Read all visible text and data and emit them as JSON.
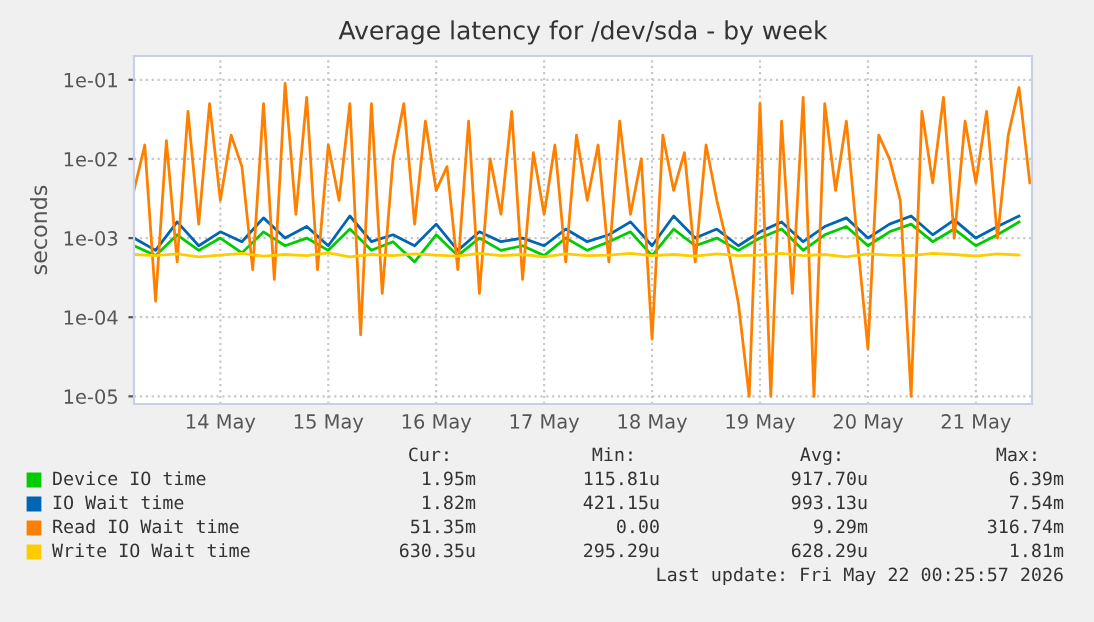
{
  "chart_data": {
    "type": "line",
    "title": "Average latency for /dev/sda - by week",
    "ylabel": "seconds",
    "log": "y",
    "grid": true,
    "legend": "bottom",
    "xlim": [
      "2026-05-13T16:48",
      "2026-05-22T00:29"
    ],
    "ylim": [
      8e-06,
      0.2
    ],
    "xticks": [
      {
        "value": "2026-05-14T12:00",
        "label": "14 May"
      },
      {
        "value": "2026-05-15T12:00",
        "label": "15 May"
      },
      {
        "value": "2026-05-16T12:00",
        "label": "16 May"
      },
      {
        "value": "2026-05-17T12:00",
        "label": "17 May"
      },
      {
        "value": "2026-05-18T12:00",
        "label": "18 May"
      },
      {
        "value": "2026-05-19T12:00",
        "label": "19 May"
      },
      {
        "value": "2026-05-20T12:00",
        "label": "20 May"
      },
      {
        "value": "2026-05-21T12:00",
        "label": "21 May"
      }
    ],
    "yticks": [
      {
        "value": 1e-05,
        "label": "1e-05"
      },
      {
        "value": 0.0001,
        "label": "1e-04"
      },
      {
        "value": 0.001,
        "label": "1e-03"
      },
      {
        "value": 0.01,
        "label": "1e-02"
      },
      {
        "value": 0.1,
        "label": "1e-01"
      }
    ],
    "series": [
      {
        "name": "Device IO time",
        "color": "#00cc00",
        "x": [
          "2026-05-13T16:48",
          "2026-05-13T21:36",
          "2026-05-14T02:24",
          "2026-05-14T07:12",
          "2026-05-14T12:00",
          "2026-05-14T16:48",
          "2026-05-14T21:36",
          "2026-05-15T02:24",
          "2026-05-15T07:12",
          "2026-05-15T12:00",
          "2026-05-15T16:48",
          "2026-05-15T21:36",
          "2026-05-16T02:24",
          "2026-05-16T07:12",
          "2026-05-16T12:00",
          "2026-05-16T16:48",
          "2026-05-16T21:36",
          "2026-05-17T02:24",
          "2026-05-17T07:12",
          "2026-05-17T12:00",
          "2026-05-17T16:48",
          "2026-05-17T21:36",
          "2026-05-18T02:24",
          "2026-05-18T07:12",
          "2026-05-18T12:00",
          "2026-05-18T16:48",
          "2026-05-18T21:36",
          "2026-05-19T02:24",
          "2026-05-19T07:12",
          "2026-05-19T12:00",
          "2026-05-19T16:48",
          "2026-05-19T21:36",
          "2026-05-20T02:24",
          "2026-05-20T07:12",
          "2026-05-20T12:00",
          "2026-05-20T16:48",
          "2026-05-20T21:36",
          "2026-05-21T02:24",
          "2026-05-21T07:12",
          "2026-05-21T12:00",
          "2026-05-21T16:48",
          "2026-05-21T21:36"
        ],
        "values": [
          0.0008,
          0.0006,
          0.0011,
          0.0007,
          0.001,
          0.00065,
          0.0012,
          0.0008,
          0.001,
          0.0007,
          0.0013,
          0.0007,
          0.0009,
          0.0005,
          0.0011,
          0.0006,
          0.001,
          0.0007,
          0.0008,
          0.0006,
          0.001,
          0.0007,
          0.0009,
          0.0012,
          0.0006,
          0.0013,
          0.0008,
          0.001,
          0.0007,
          0.001,
          0.0013,
          0.0007,
          0.0011,
          0.0014,
          0.0008,
          0.0012,
          0.0015,
          0.0009,
          0.0013,
          0.0008,
          0.0011,
          0.0016
        ]
      },
      {
        "name": "IO Wait time",
        "color": "#0066b3",
        "x": [
          "2026-05-13T16:48",
          "2026-05-13T21:36",
          "2026-05-14T02:24",
          "2026-05-14T07:12",
          "2026-05-14T12:00",
          "2026-05-14T16:48",
          "2026-05-14T21:36",
          "2026-05-15T02:24",
          "2026-05-15T07:12",
          "2026-05-15T12:00",
          "2026-05-15T16:48",
          "2026-05-15T21:36",
          "2026-05-16T02:24",
          "2026-05-16T07:12",
          "2026-05-16T12:00",
          "2026-05-16T16:48",
          "2026-05-16T21:36",
          "2026-05-17T02:24",
          "2026-05-17T07:12",
          "2026-05-17T12:00",
          "2026-05-17T16:48",
          "2026-05-17T21:36",
          "2026-05-18T02:24",
          "2026-05-18T07:12",
          "2026-05-18T12:00",
          "2026-05-18T16:48",
          "2026-05-18T21:36",
          "2026-05-19T02:24",
          "2026-05-19T07:12",
          "2026-05-19T12:00",
          "2026-05-19T16:48",
          "2026-05-19T21:36",
          "2026-05-20T02:24",
          "2026-05-20T07:12",
          "2026-05-20T12:00",
          "2026-05-20T16:48",
          "2026-05-20T21:36",
          "2026-05-21T02:24",
          "2026-05-21T07:12",
          "2026-05-21T12:00",
          "2026-05-21T16:48",
          "2026-05-21T21:36"
        ],
        "values": [
          0.001,
          0.0007,
          0.0016,
          0.0008,
          0.0012,
          0.0009,
          0.0018,
          0.001,
          0.0014,
          0.0008,
          0.0019,
          0.0009,
          0.0011,
          0.0008,
          0.0015,
          0.0007,
          0.0012,
          0.0009,
          0.001,
          0.0008,
          0.0013,
          0.0009,
          0.0011,
          0.0016,
          0.0008,
          0.0019,
          0.001,
          0.0013,
          0.0008,
          0.0012,
          0.0016,
          0.0009,
          0.0014,
          0.0018,
          0.001,
          0.0015,
          0.0019,
          0.0011,
          0.0017,
          0.001,
          0.0014,
          0.0019
        ]
      },
      {
        "name": "Read IO Wait time",
        "color": "#ff8000",
        "x": [
          "2026-05-13T16:48",
          "2026-05-13T19:12",
          "2026-05-13T21:36",
          "2026-05-14T00:00",
          "2026-05-14T02:24",
          "2026-05-14T04:48",
          "2026-05-14T07:12",
          "2026-05-14T09:36",
          "2026-05-14T12:00",
          "2026-05-14T14:24",
          "2026-05-14T16:48",
          "2026-05-14T19:12",
          "2026-05-14T21:36",
          "2026-05-15T00:00",
          "2026-05-15T02:24",
          "2026-05-15T04:48",
          "2026-05-15T07:12",
          "2026-05-15T09:36",
          "2026-05-15T12:00",
          "2026-05-15T14:24",
          "2026-05-15T16:48",
          "2026-05-15T19:12",
          "2026-05-15T21:36",
          "2026-05-16T00:00",
          "2026-05-16T02:24",
          "2026-05-16T04:48",
          "2026-05-16T07:12",
          "2026-05-16T09:36",
          "2026-05-16T12:00",
          "2026-05-16T14:24",
          "2026-05-16T16:48",
          "2026-05-16T19:12",
          "2026-05-16T21:36",
          "2026-05-17T00:00",
          "2026-05-17T02:24",
          "2026-05-17T04:48",
          "2026-05-17T07:12",
          "2026-05-17T09:36",
          "2026-05-17T12:00",
          "2026-05-17T14:24",
          "2026-05-17T16:48",
          "2026-05-17T19:12",
          "2026-05-17T21:36",
          "2026-05-18T00:00",
          "2026-05-18T02:24",
          "2026-05-18T04:48",
          "2026-05-18T07:12",
          "2026-05-18T09:36",
          "2026-05-18T12:00",
          "2026-05-18T14:24",
          "2026-05-18T16:48",
          "2026-05-18T19:12",
          "2026-05-18T21:36",
          "2026-05-19T00:00",
          "2026-05-19T02:24",
          "2026-05-19T04:48",
          "2026-05-19T07:12",
          "2026-05-19T09:36",
          "2026-05-19T12:00",
          "2026-05-19T14:24",
          "2026-05-19T16:48",
          "2026-05-19T19:12",
          "2026-05-19T21:36",
          "2026-05-20T00:00",
          "2026-05-20T02:24",
          "2026-05-20T04:48",
          "2026-05-20T07:12",
          "2026-05-20T09:36",
          "2026-05-20T12:00",
          "2026-05-20T14:24",
          "2026-05-20T16:48",
          "2026-05-20T19:12",
          "2026-05-20T21:36",
          "2026-05-21T00:00",
          "2026-05-21T02:24",
          "2026-05-21T04:48",
          "2026-05-21T07:12",
          "2026-05-21T09:36",
          "2026-05-21T12:00",
          "2026-05-21T14:24",
          "2026-05-21T16:48",
          "2026-05-21T19:12",
          "2026-05-21T21:36",
          "2026-05-22T00:00"
        ],
        "values": [
          0.004,
          0.015,
          0.00016,
          0.017,
          0.0005,
          0.04,
          0.0015,
          0.05,
          0.003,
          0.02,
          0.008,
          0.0004,
          0.05,
          0.0003,
          0.09,
          0.002,
          0.06,
          0.0004,
          0.015,
          0.003,
          0.05,
          6e-05,
          0.05,
          0.0002,
          0.01,
          0.05,
          0.0015,
          0.03,
          0.004,
          0.008,
          0.0004,
          0.03,
          0.0002,
          0.01,
          0.002,
          0.04,
          0.0003,
          0.012,
          0.002,
          0.015,
          0.0005,
          0.02,
          0.003,
          0.015,
          0.0005,
          0.03,
          0.002,
          0.01,
          5.3e-05,
          0.02,
          0.004,
          0.012,
          0.0005,
          0.015,
          0.003,
          0.0008,
          0.00015,
          1e-05,
          0.05,
          1e-05,
          0.03,
          0.0002,
          0.06,
          1e-05,
          0.05,
          0.004,
          0.03,
          0.001,
          4e-05,
          0.02,
          0.01,
          0.003,
          1e-05,
          0.04,
          0.005,
          0.06,
          0.001,
          0.03,
          0.005,
          0.04,
          0.001,
          0.02,
          0.08,
          0.005
        ]
      },
      {
        "name": "Write IO Wait time",
        "color": "#ffcc00",
        "x": [
          "2026-05-13T16:48",
          "2026-05-13T21:36",
          "2026-05-14T02:24",
          "2026-05-14T07:12",
          "2026-05-14T12:00",
          "2026-05-14T16:48",
          "2026-05-14T21:36",
          "2026-05-15T02:24",
          "2026-05-15T07:12",
          "2026-05-15T12:00",
          "2026-05-15T16:48",
          "2026-05-15T21:36",
          "2026-05-16T02:24",
          "2026-05-16T07:12",
          "2026-05-16T12:00",
          "2026-05-16T16:48",
          "2026-05-16T21:36",
          "2026-05-17T02:24",
          "2026-05-17T07:12",
          "2026-05-17T12:00",
          "2026-05-17T16:48",
          "2026-05-17T21:36",
          "2026-05-18T02:24",
          "2026-05-18T07:12",
          "2026-05-18T12:00",
          "2026-05-18T16:48",
          "2026-05-18T21:36",
          "2026-05-19T02:24",
          "2026-05-19T07:12",
          "2026-05-19T12:00",
          "2026-05-19T16:48",
          "2026-05-19T21:36",
          "2026-05-20T02:24",
          "2026-05-20T07:12",
          "2026-05-20T12:00",
          "2026-05-20T16:48",
          "2026-05-20T21:36",
          "2026-05-21T02:24",
          "2026-05-21T07:12",
          "2026-05-21T12:00",
          "2026-05-21T16:48",
          "2026-05-21T21:36"
        ],
        "values": [
          0.00062,
          0.0006,
          0.00063,
          0.00058,
          0.00061,
          0.00064,
          0.00059,
          0.00062,
          0.0006,
          0.00065,
          0.00058,
          0.00062,
          0.0006,
          0.00063,
          0.00061,
          0.00059,
          0.00064,
          0.0006,
          0.00062,
          0.00058,
          0.00063,
          0.0006,
          0.00061,
          0.00064,
          0.0006,
          0.00062,
          0.00059,
          0.00063,
          0.0006,
          0.00061,
          0.00064,
          0.0006,
          0.00062,
          0.00058,
          0.00063,
          0.00061,
          0.0006,
          0.00064,
          0.00062,
          0.00059,
          0.00063,
          0.00061
        ]
      }
    ],
    "annotations": [
      "Cur:",
      "Min:",
      "Avg:",
      "Max:",
      "1.95m",
      "115.81u",
      "917.70u",
      "6.39m",
      "1.82m",
      "421.15u",
      "993.13u",
      "7.54m",
      "51.35m",
      "0.00",
      "9.29m",
      "316.74m",
      "630.35u",
      "295.29u",
      "628.29u",
      "1.81m",
      "Last update: Fri May 22 00:25:57 2026"
    ]
  }
}
